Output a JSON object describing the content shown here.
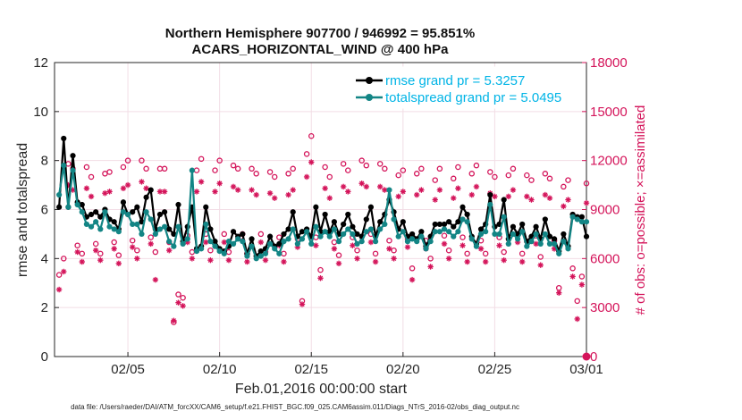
{
  "chart_data": {
    "type": "line",
    "title": [
      "Northern Hemisphere 907700 / 946992 = 95.851%",
      "ACARS_HORIZONTAL_WIND @ 400 hPa"
    ],
    "xlabel": "Feb.01,2016 00:00:00 start",
    "ylabel": "rmse and totalspread",
    "y2label": "# of obs: o=possible; ×=assimilated",
    "xlim": [
      0,
      29
    ],
    "ylim": [
      0,
      12
    ],
    "y2lim": [
      0,
      18000
    ],
    "xticks": [
      {
        "x": 4,
        "label": "02/05"
      },
      {
        "x": 9,
        "label": "02/10"
      },
      {
        "x": 14,
        "label": "02/15"
      },
      {
        "x": 19,
        "label": "02/20"
      },
      {
        "x": 24,
        "label": "02/25"
      },
      {
        "x": 29,
        "label": "03/01"
      }
    ],
    "yticks": [
      "0",
      "2",
      "4",
      "6",
      "8",
      "10",
      "12"
    ],
    "y2ticks": [
      "0",
      "3000",
      "6000",
      "9000",
      "12000",
      "15000",
      "18000"
    ],
    "grid": true,
    "legend_position": "top-right",
    "x": [
      0.25,
      0.5,
      0.75,
      1.0,
      1.25,
      1.5,
      1.75,
      2.0,
      2.25,
      2.5,
      2.75,
      3.0,
      3.25,
      3.5,
      3.75,
      4.0,
      4.25,
      4.5,
      4.75,
      5.0,
      5.25,
      5.5,
      5.75,
      6.0,
      6.25,
      6.5,
      6.75,
      7.0,
      7.25,
      7.5,
      7.75,
      8.0,
      8.25,
      8.5,
      8.75,
      9.0,
      9.25,
      9.5,
      9.75,
      10.0,
      10.25,
      10.5,
      10.75,
      11.0,
      11.25,
      11.5,
      11.75,
      12.0,
      12.25,
      12.5,
      12.75,
      13.0,
      13.25,
      13.5,
      13.75,
      14.0,
      14.25,
      14.5,
      14.75,
      15.0,
      15.25,
      15.5,
      15.75,
      16.0,
      16.25,
      16.5,
      16.75,
      17.0,
      17.25,
      17.5,
      17.75,
      18.0,
      18.25,
      18.5,
      18.75,
      19.0,
      19.25,
      19.5,
      19.75,
      20.0,
      20.25,
      20.5,
      20.75,
      21.0,
      21.25,
      21.5,
      21.75,
      22.0,
      22.25,
      22.5,
      22.75,
      23.0,
      23.25,
      23.5,
      23.75,
      24.0,
      24.25,
      24.5,
      24.75,
      25.0,
      25.25,
      25.5,
      25.75,
      26.0,
      26.25,
      26.5,
      26.75,
      27.0,
      27.25,
      27.5,
      27.75,
      28.0,
      28.25,
      28.5,
      28.75,
      29.0
    ],
    "series": [
      {
        "name": "rmse grand pr = 5.3257",
        "color": "#000000",
        "marker": "circle",
        "values": [
          6.1,
          8.9,
          6.1,
          8.2,
          6.3,
          6.2,
          5.7,
          5.8,
          5.9,
          5.7,
          6.0,
          5.6,
          5.5,
          5.2,
          6.3,
          5.8,
          5.9,
          6.1,
          5.5,
          6.5,
          6.8,
          5.2,
          5.8,
          5.9,
          5.2,
          5.0,
          6.2,
          4.7,
          5.3,
          6.1,
          4.4,
          4.5,
          6.1,
          5.2,
          4.7,
          4.4,
          4.3,
          4.5,
          5.1,
          4.9,
          5.0,
          4.2,
          4.8,
          4.1,
          4.3,
          4.4,
          4.9,
          4.5,
          4.6,
          5.0,
          5.2,
          5.9,
          4.9,
          5.1,
          5.2,
          4.9,
          6.1,
          5.1,
          5.8,
          5.1,
          5.5,
          5.0,
          5.4,
          5.8,
          5.3,
          5.0,
          4.9,
          5.6,
          6.1,
          4.9,
          5.5,
          5.8,
          6.4,
          5.9,
          5.2,
          5.5,
          4.9,
          5.0,
          4.8,
          5.1,
          4.5,
          4.9,
          5.4,
          5.4,
          5.4,
          5.5,
          5.3,
          5.5,
          6.1,
          5.8,
          4.9,
          4.6,
          5.2,
          5.4,
          6.6,
          5.3,
          5.4,
          6.4,
          4.8,
          5.3,
          5.0,
          5.4,
          4.7,
          4.9,
          5.3,
          4.8,
          5.6,
          4.9,
          4.8,
          4.3,
          5.0,
          4.5,
          5.8,
          5.7,
          5.7,
          4.9
        ]
      },
      {
        "name": "totalspread grand pr = 5.0495",
        "color": "#138585",
        "marker": "circle",
        "values": [
          6.6,
          7.8,
          6.1,
          7.6,
          6.2,
          5.9,
          5.4,
          5.3,
          5.5,
          5.2,
          5.9,
          5.3,
          5.2,
          5.1,
          5.9,
          5.8,
          5.4,
          5.4,
          5.0,
          5.9,
          5.6,
          5.0,
          5.2,
          5.3,
          4.7,
          4.5,
          5.3,
          4.6,
          4.8,
          7.6,
          4.3,
          4.4,
          5.4,
          4.7,
          4.5,
          4.3,
          4.2,
          4.7,
          4.6,
          4.8,
          4.7,
          4.1,
          4.5,
          4.0,
          4.1,
          4.2,
          4.6,
          4.4,
          4.2,
          4.7,
          4.8,
          5.2,
          4.6,
          4.8,
          5.1,
          4.6,
          5.3,
          4.9,
          5.1,
          4.9,
          5.2,
          4.7,
          5.0,
          5.2,
          5.0,
          4.6,
          4.7,
          5.1,
          5.2,
          4.7,
          5.2,
          5.4,
          6.8,
          5.6,
          4.9,
          5.1,
          4.7,
          4.8,
          4.7,
          4.9,
          4.4,
          4.7,
          5.1,
          5.1,
          5.2,
          5.1,
          4.9,
          5.1,
          5.6,
          5.5,
          4.8,
          4.5,
          5.0,
          5.1,
          6.2,
          5.0,
          5.0,
          5.7,
          4.6,
          5.0,
          4.8,
          5.1,
          4.5,
          4.7,
          5.0,
          4.6,
          5.0,
          4.6,
          4.6,
          4.2,
          4.7,
          4.4,
          5.7,
          5.6,
          5.5,
          5.5
        ]
      },
      {
        "name": "possible",
        "axis": "right",
        "color": "#d4145a",
        "marker": "o",
        "values": [
          5000,
          6000,
          11800,
          11500,
          6800,
          6300,
          11600,
          11000,
          6900,
          6300,
          11200,
          11300,
          7000,
          6200,
          11600,
          12000,
          7100,
          6500,
          12000,
          11500,
          7300,
          6400,
          11500,
          11500,
          7000,
          2100,
          3800,
          3600,
          7400,
          6400,
          11400,
          12100,
          7500,
          6500,
          11400,
          12000,
          7500,
          6400,
          11700,
          11500,
          7500,
          6300,
          11500,
          11200,
          7500,
          6400,
          11300,
          11000,
          7300,
          6300,
          11200,
          11500,
          7200,
          3400,
          12400,
          13500,
          7300,
          5300,
          11600,
          11000,
          7000,
          6200,
          11800,
          11400,
          7300,
          6500,
          12000,
          11700,
          7500,
          6300,
          11800,
          11500,
          7100,
          6500,
          11100,
          11400,
          7200,
          5400,
          11200,
          11500,
          7100,
          6000,
          10800,
          11500,
          7400,
          6500,
          10900,
          11600,
          7300,
          6300,
          11200,
          11700,
          7100,
          6300,
          11300,
          11000,
          7300,
          6400,
          11100,
          11500,
          7500,
          6300,
          11100,
          10800,
          7400,
          6100,
          11200,
          10900,
          7100,
          4200,
          10400,
          10800,
          5400,
          3400,
          4900,
          10600
        ]
      },
      {
        "name": "assimilated",
        "axis": "right",
        "color": "#d4145a",
        "marker": "asterisk",
        "values": [
          4100,
          5200,
          10500,
          10200,
          6400,
          5800,
          10300,
          9800,
          6500,
          5900,
          10000,
          10100,
          6600,
          5700,
          10300,
          10500,
          6700,
          6000,
          10700,
          10300,
          6900,
          4700,
          10100,
          10100,
          6500,
          2200,
          3300,
          3100,
          7000,
          6000,
          10100,
          10700,
          7000,
          5900,
          10100,
          10600,
          7000,
          5900,
          10400,
          10200,
          7100,
          5800,
          10200,
          9900,
          7000,
          5900,
          10000,
          9700,
          6800,
          5800,
          9900,
          10200,
          6700,
          3200,
          11000,
          11900,
          6800,
          4800,
          10300,
          9700,
          6600,
          5700,
          10400,
          10100,
          6800,
          6000,
          10600,
          10400,
          7000,
          5800,
          10400,
          10200,
          6600,
          6000,
          9800,
          10100,
          6700,
          4700,
          9900,
          10200,
          6600,
          5500,
          9600,
          10200,
          6900,
          6000,
          9700,
          10300,
          6800,
          5800,
          9900,
          10400,
          6600,
          5800,
          10000,
          9800,
          6800,
          5900,
          9800,
          10200,
          7000,
          5800,
          9800,
          9600,
          6900,
          5600,
          9900,
          9700,
          6600,
          3900,
          9200,
          9600,
          4900,
          2300,
          4400,
          9400
        ]
      }
    ],
    "end_marker": {
      "x": 29,
      "y2": 0,
      "label": "0"
    }
  },
  "footer": "data file: /Users/raeder/DAI/ATM_forcXX/CAM6_setup/f.e21.FHIST_BGC.f09_025.CAM6assim.011/Diags_NTrS_2016-02/obs_diag_output.nc"
}
